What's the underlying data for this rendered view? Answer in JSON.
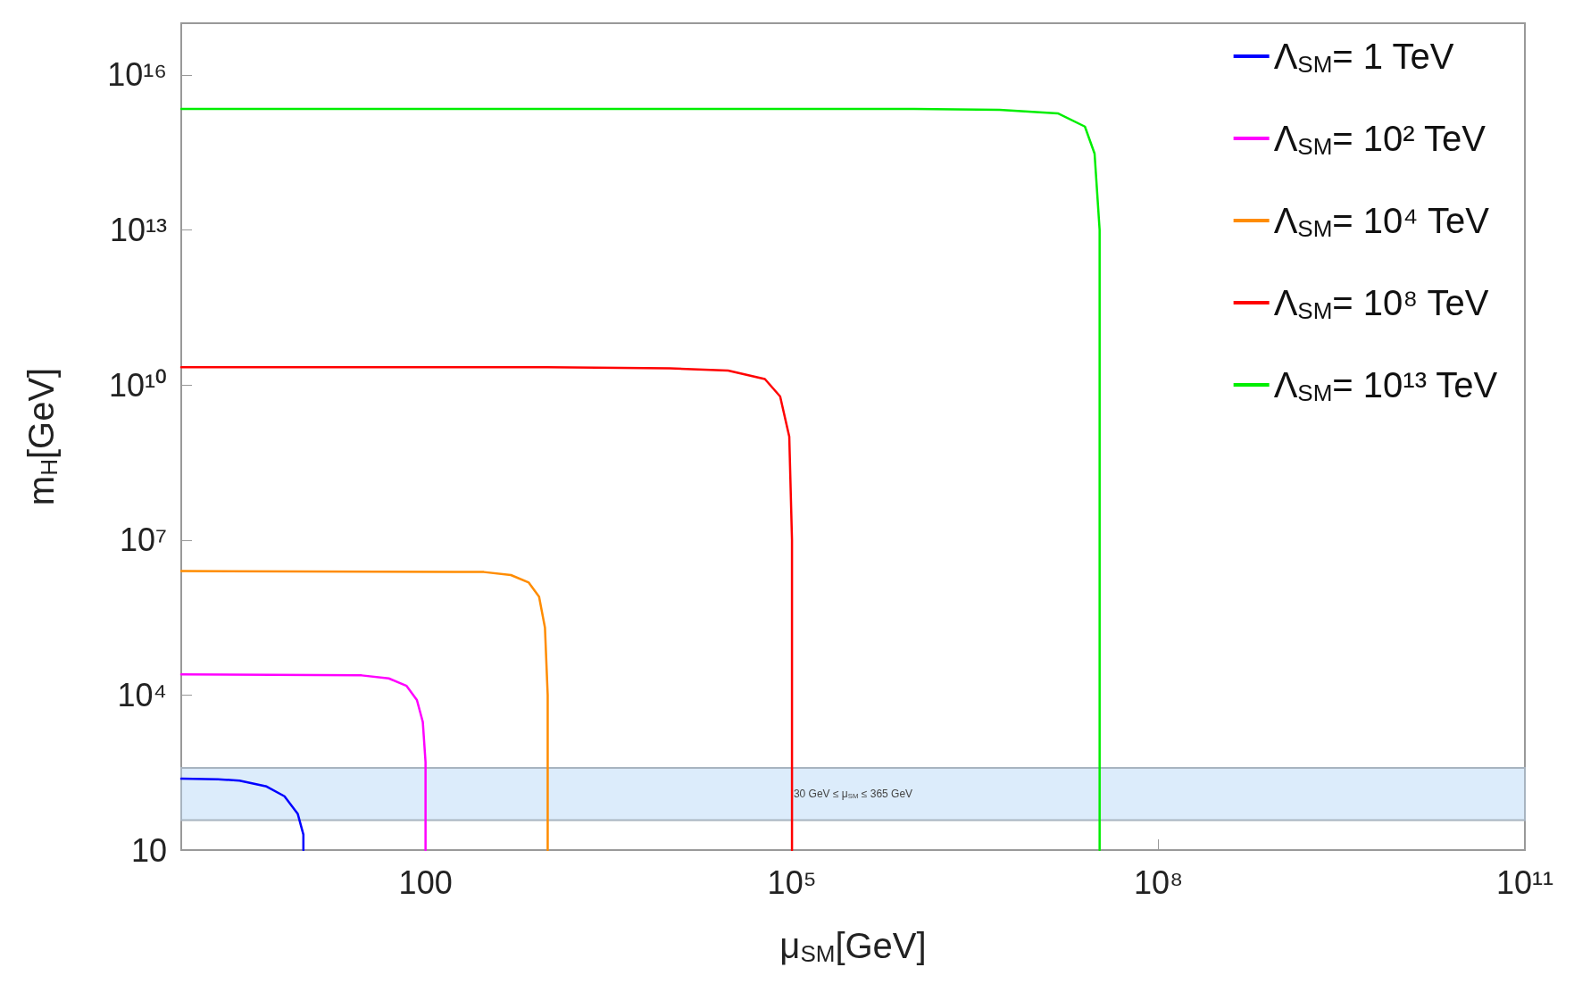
{
  "chart_data": {
    "type": "line",
    "xlabel": "μ$_{SM}$[GeV]",
    "ylabel": "m$_{H}$[GeV]",
    "log": "xy",
    "grid": false,
    "legend": "top right",
    "marker": "none",
    "line_style": "solid",
    "xlim": [
      1,
      100000000000
    ],
    "xticks": [
      {
        "value": 100,
        "label": "100"
      },
      {
        "value": 100000,
        "label": "10⁵"
      },
      {
        "value": 100000000,
        "label": "10⁸"
      },
      {
        "value": 100000000000,
        "label": "10¹¹"
      }
    ],
    "ylim": [
      10,
      100000000000000000
    ],
    "yticks": [
      {
        "value": 10,
        "label": "10"
      },
      {
        "value": 10000,
        "label": "10⁴"
      },
      {
        "value": 10000000,
        "label": "10⁷"
      },
      {
        "value": 10000000000,
        "label": "10¹⁰"
      },
      {
        "value": 10000000000000,
        "label": "10¹³"
      },
      {
        "value": 10000000000000000,
        "label": "10¹⁶"
      }
    ],
    "bands": [
      {
        "axis": "y",
        "from": 38,
        "to": 390,
        "label": "30 GeV ≤ μ$_{SM}$ ≤ 365 GeV",
        "color": "#dcecfb"
      }
    ],
    "series": [
      {
        "name": "Λ$_{SM}$= 1 TeV",
        "color": "#0000ff",
        "x": [
          1,
          2,
          3,
          5,
          7,
          9,
          10,
          10
        ],
        "values": [
          240,
          235,
          220,
          170,
          110,
          50,
          20,
          10
        ]
      },
      {
        "name": "Λ$_{SM}$= 10² TeV",
        "color": "#ff00ff",
        "x": [
          1,
          30,
          50,
          70,
          85,
          95,
          100,
          100
        ],
        "values": [
          25000,
          24000,
          21000,
          15000,
          8000,
          3000,
          500,
          10
        ]
      },
      {
        "name": "Λ$_{SM}$= 10⁴ TeV",
        "color": "#ff8c00",
        "x": [
          1,
          300,
          500,
          700,
          850,
          950,
          1000,
          1000
        ],
        "values": [
          2500000,
          2400000,
          2100000,
          1500000,
          800000,
          200000,
          10000,
          10
        ]
      },
      {
        "name": "Λ$_{SM}$= 10⁸ TeV",
        "color": "#ff0000",
        "x": [
          1,
          1000,
          10000,
          30000,
          60000,
          80000,
          95000,
          100000,
          100000
        ],
        "values": [
          22000000000,
          22000000000,
          21000000000,
          19000000000,
          13000000000,
          6000000000,
          1000000000,
          10000000,
          10
        ]
      },
      {
        "name": "Λ$_{SM}$= 10¹³ TeV",
        "color": "#00ee00",
        "x": [
          1,
          1000000,
          5000000,
          15000000,
          25000000,
          30000000,
          33000000,
          33000000
        ],
        "values": [
          2200000000000000,
          2200000000000000,
          2100000000000000,
          1800000000000000,
          1000000000000000,
          300000000000000,
          10000000000000,
          10
        ]
      }
    ]
  }
}
